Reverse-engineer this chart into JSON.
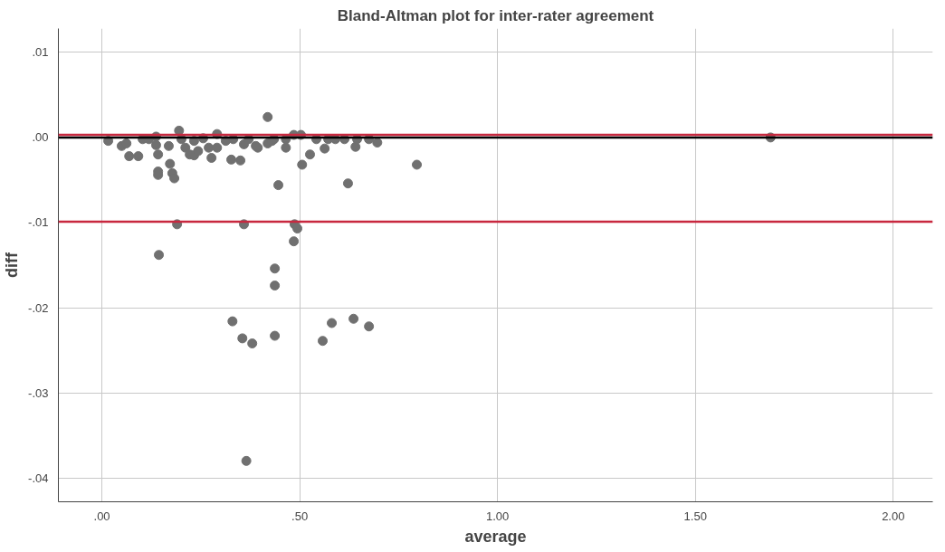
{
  "chart_data": {
    "type": "scatter",
    "title": "Bland-Altman plot for inter-rater agreement",
    "xlabel": "average",
    "ylabel": "diff",
    "xlim": [
      -0.11,
      2.1
    ],
    "ylim": [
      -0.0428,
      0.0128
    ],
    "xticks": [
      {
        "value": 0,
        "label": ".00"
      },
      {
        "value": 0.5,
        "label": ".50"
      },
      {
        "value": 1,
        "label": "1.00"
      },
      {
        "value": 1.5,
        "label": "1.50"
      },
      {
        "value": 2,
        "label": "2.00"
      }
    ],
    "yticks": [
      {
        "value": -0.04,
        "label": "-.04"
      },
      {
        "value": -0.03,
        "label": "-.03"
      },
      {
        "value": -0.02,
        "label": "-.02"
      },
      {
        "value": -0.01,
        "label": "-.01"
      },
      {
        "value": 0,
        "label": ".00"
      },
      {
        "value": 0.01,
        "label": ".01"
      }
    ],
    "grid": true,
    "marker": "circle",
    "series": [
      {
        "color": "#707070",
        "x": [
          0.016,
          0.05,
          0.062,
          0.069,
          0.092,
          0.103,
          0.119,
          0.137,
          0.137,
          0.142,
          0.142,
          0.142,
          0.169,
          0.172,
          0.178,
          0.183,
          0.195,
          0.201,
          0.211,
          0.222,
          0.233,
          0.243,
          0.233,
          0.256,
          0.27,
          0.277,
          0.291,
          0.291,
          0.313,
          0.327,
          0.35,
          0.359,
          0.332,
          0.371,
          0.389,
          0.19,
          0.359,
          0.144,
          0.394,
          0.419,
          0.419,
          0.43,
          0.435,
          0.465,
          0.465,
          0.485,
          0.503,
          0.506,
          0.526,
          0.542,
          0.563,
          0.572,
          0.59,
          0.613,
          0.622,
          0.641,
          0.645,
          0.675,
          0.696,
          0.796,
          0.446,
          0.487,
          0.494,
          0.485,
          0.437,
          0.437,
          0.437,
          0.581,
          0.636,
          0.675,
          0.558,
          0.33,
          0.355,
          0.38,
          0.365,
          1.69
        ],
        "values": [
          -0.0004,
          -0.001,
          -0.0007,
          -0.0022,
          -0.0022,
          -0.0002,
          -0.0002,
          0.0001,
          -0.0009,
          -0.002,
          -0.004,
          -0.0044,
          -0.001,
          -0.0031,
          -0.0042,
          -0.0048,
          0.0008,
          -0.0002,
          -0.0012,
          -0.002,
          -0.0021,
          -0.0016,
          -0.0004,
          -0.0001,
          -0.0012,
          -0.0024,
          0.0004,
          -0.0012,
          -0.0004,
          -0.0026,
          -0.0027,
          -0.0008,
          -0.0002,
          -0.0002,
          -0.001,
          -0.0102,
          -0.0102,
          -0.0138,
          -0.0012,
          0.0024,
          -0.0007,
          -0.0004,
          -0.0002,
          -0.0012,
          -0.0002,
          0.0003,
          0.0003,
          -0.0032,
          -0.002,
          -0.0002,
          -0.0013,
          -0.0002,
          -0.0002,
          -0.0002,
          -0.0054,
          -0.0011,
          -0.0002,
          -0.0002,
          -0.0006,
          -0.0032,
          -0.0056,
          -0.0102,
          -0.0107,
          -0.0122,
          -0.0154,
          -0.0174,
          -0.0233,
          -0.0218,
          -0.0213,
          -0.0222,
          -0.0239,
          -0.0216,
          -0.0236,
          -0.0242,
          -0.038,
          0.0
        ]
      }
    ],
    "ref_lines": [
      {
        "axis": "y",
        "value": 0,
        "color": "#000000"
      },
      {
        "axis": "y",
        "value": 0.0003,
        "color": "#c8283f"
      },
      {
        "axis": "y",
        "value": -0.0099,
        "color": "#c8283f"
      }
    ]
  }
}
